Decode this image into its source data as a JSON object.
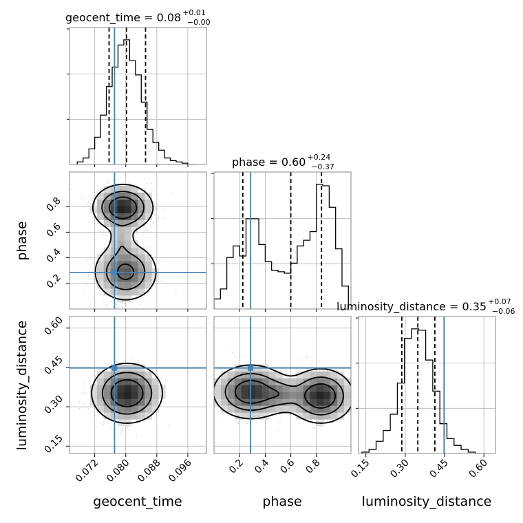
{
  "chart_data": {
    "type": "corner",
    "parameters": [
      "geocent_time",
      "phase",
      "luminosity_distance"
    ],
    "colors": {
      "truth": "#4682b4",
      "line": "#000000",
      "grid": "#b0b0b0",
      "scatter": "#9a9a9a"
    },
    "grid": true,
    "titles": [
      {
        "main": "geocent_time = 0.08",
        "sup": "+0.01",
        "sub": "−0.00"
      },
      {
        "main": "phase = 0.60",
        "sup": "+0.24",
        "sub": "−0.37"
      },
      {
        "main": "luminosity_distance = 0.35",
        "sup": "+0.07",
        "sub": "−0.06"
      }
    ],
    "axis_labels": {
      "x": [
        "geocent_time",
        "phase",
        "luminosity_distance"
      ],
      "y": [
        "phase",
        "luminosity_distance"
      ]
    },
    "ranges": {
      "geocent_time": [
        0.0655,
        0.1008
      ],
      "phase": [
        0.0,
        1.07
      ],
      "luminosity_distance": [
        0.122,
        0.644
      ]
    },
    "ticks": {
      "geocent_time": [
        "0.072",
        "0.080",
        "0.088",
        "0.096"
      ],
      "phase": [
        "0.2",
        "0.4",
        "0.6",
        "0.8"
      ],
      "luminosity_distance": [
        "0.15",
        "0.30",
        "0.45",
        "0.60"
      ]
    },
    "truths": {
      "geocent_time": 0.0771,
      "phase": 0.285,
      "luminosity_distance": 0.448
    },
    "quantiles": {
      "geocent_time": [
        0.0757,
        0.0802,
        0.0851
      ],
      "phase": [
        0.225,
        0.6,
        0.84
      ],
      "luminosity_distance": [
        0.287,
        0.348,
        0.413
      ]
    },
    "histograms": [
      {
        "parameter": "geocent_time",
        "edges": [
          0.0675,
          0.069,
          0.0705,
          0.072,
          0.0735,
          0.075,
          0.0765,
          0.078,
          0.0795,
          0.081,
          0.0825,
          0.084,
          0.0855,
          0.087,
          0.0885,
          0.09,
          0.0915,
          0.093,
          0.0945,
          0.096,
          0.0975
        ],
        "counts": [
          2,
          5,
          12,
          21,
          38,
          60,
          75,
          92,
          96,
          80,
          69,
          48,
          27,
          17,
          11,
          5,
          3,
          2,
          1,
          0
        ]
      },
      {
        "parameter": "phase",
        "edges": [
          0.0,
          0.05,
          0.1,
          0.15,
          0.2,
          0.25,
          0.3,
          0.35,
          0.4,
          0.45,
          0.5,
          0.55,
          0.6,
          0.65,
          0.7,
          0.75,
          0.8,
          0.85,
          0.9,
          0.95,
          1.0,
          1.05
        ],
        "counts": [
          7,
          14,
          36,
          44,
          37,
          63,
          63,
          45,
          33,
          27,
          26,
          25,
          32,
          44,
          48,
          54,
          87,
          86,
          71,
          42,
          16
        ]
      },
      {
        "parameter": "luminosity_distance",
        "edges": [
          0.135,
          0.162,
          0.189,
          0.216,
          0.243,
          0.27,
          0.297,
          0.324,
          0.351,
          0.378,
          0.405,
          0.432,
          0.459,
          0.486,
          0.513,
          0.54,
          0.567,
          0.594
        ],
        "counts": [
          1,
          3,
          9,
          17,
          29,
          52,
          85,
          92,
          91,
          69,
          46,
          22,
          11,
          6,
          3,
          1,
          0
        ]
      }
    ],
    "pairs": [
      {
        "x": "geocent_time",
        "y": "phase"
      },
      {
        "x": "geocent_time",
        "y": "luminosity_distance"
      },
      {
        "x": "phase",
        "y": "luminosity_distance"
      }
    ]
  }
}
